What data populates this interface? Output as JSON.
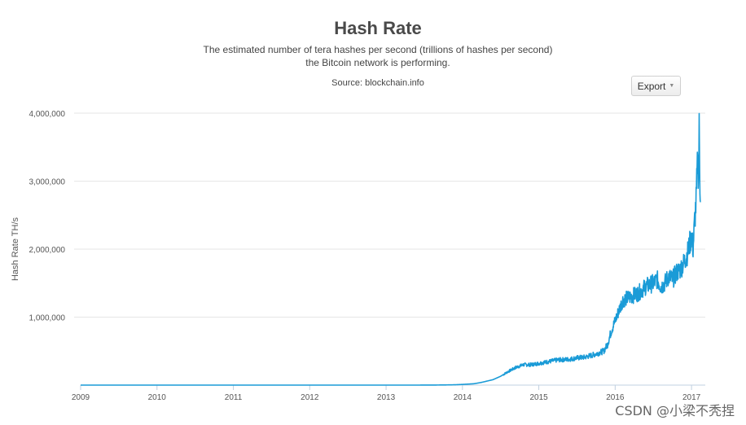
{
  "header": {
    "title": "Hash Rate",
    "subtitle_line1": "The estimated number of tera hashes per second (trillions of hashes per second)",
    "subtitle_line2": "the Bitcoin network is performing.",
    "source": "Source: blockchain.info"
  },
  "toolbar": {
    "export_label": "Export",
    "export_icon": "caret-down-icon"
  },
  "watermark": "CSDN @小梁不秃捏",
  "colors": {
    "line": "#1a9bd7",
    "grid": "#e6e6e6",
    "axis": "#c0d0e0",
    "text": "#555555"
  },
  "chart_data": {
    "type": "line",
    "title": "Hash Rate",
    "subtitle": "The estimated number of tera hashes per second (trillions of hashes per second) the Bitcoin network is performing.",
    "xlabel": "",
    "ylabel": "Hash Rate TH/s",
    "xlim": [
      2009.0,
      2017.18
    ],
    "ylim": [
      0,
      4000000
    ],
    "x_ticks": [
      "2009",
      "2010",
      "2011",
      "2012",
      "2013",
      "2014",
      "2015",
      "2016",
      "2017"
    ],
    "y_ticks": [
      {
        "value": 1000000,
        "label": "1,000,000"
      },
      {
        "value": 2000000,
        "label": "2,000,000"
      },
      {
        "value": 3000000,
        "label": "3,000,000"
      },
      {
        "value": 4000000,
        "label": "4,000,000"
      }
    ],
    "grid": true,
    "legend": "none",
    "series": [
      {
        "name": "",
        "points": [
          [
            2009.0,
            0
          ],
          [
            2010.0,
            0
          ],
          [
            2011.0,
            0
          ],
          [
            2012.0,
            0
          ],
          [
            2013.0,
            0
          ],
          [
            2013.5,
            200
          ],
          [
            2013.75,
            2000
          ],
          [
            2013.9,
            5000
          ],
          [
            2014.0,
            10000
          ],
          [
            2014.15,
            20000
          ],
          [
            2014.25,
            40000
          ],
          [
            2014.4,
            80000
          ],
          [
            2014.5,
            130000
          ],
          [
            2014.6,
            200000
          ],
          [
            2014.7,
            260000
          ],
          [
            2014.8,
            300000
          ],
          [
            2014.9,
            300000
          ],
          [
            2015.0,
            320000
          ],
          [
            2015.15,
            350000
          ],
          [
            2015.25,
            370000
          ],
          [
            2015.4,
            380000
          ],
          [
            2015.5,
            400000
          ],
          [
            2015.6,
            410000
          ],
          [
            2015.7,
            440000
          ],
          [
            2015.8,
            480000
          ],
          [
            2015.85,
            500000
          ],
          [
            2015.9,
            600000
          ],
          [
            2015.95,
            800000
          ],
          [
            2016.0,
            950000
          ],
          [
            2016.05,
            1100000
          ],
          [
            2016.1,
            1250000
          ],
          [
            2016.2,
            1300000
          ],
          [
            2016.3,
            1350000
          ],
          [
            2016.4,
            1450000
          ],
          [
            2016.5,
            1500000
          ],
          [
            2016.55,
            1550000
          ],
          [
            2016.6,
            1450000
          ],
          [
            2016.65,
            1500000
          ],
          [
            2016.7,
            1600000
          ],
          [
            2016.75,
            1550000
          ],
          [
            2016.8,
            1650000
          ],
          [
            2016.85,
            1700000
          ],
          [
            2016.9,
            1800000
          ],
          [
            2016.95,
            1950000
          ],
          [
            2017.0,
            2200000
          ],
          [
            2017.02,
            2000000
          ],
          [
            2017.04,
            2400000
          ],
          [
            2017.06,
            2700000
          ],
          [
            2017.08,
            3300000
          ],
          [
            2017.09,
            3100000
          ],
          [
            2017.1,
            3750000
          ],
          [
            2017.11,
            3000000
          ],
          [
            2017.12,
            2700000
          ]
        ]
      }
    ]
  }
}
